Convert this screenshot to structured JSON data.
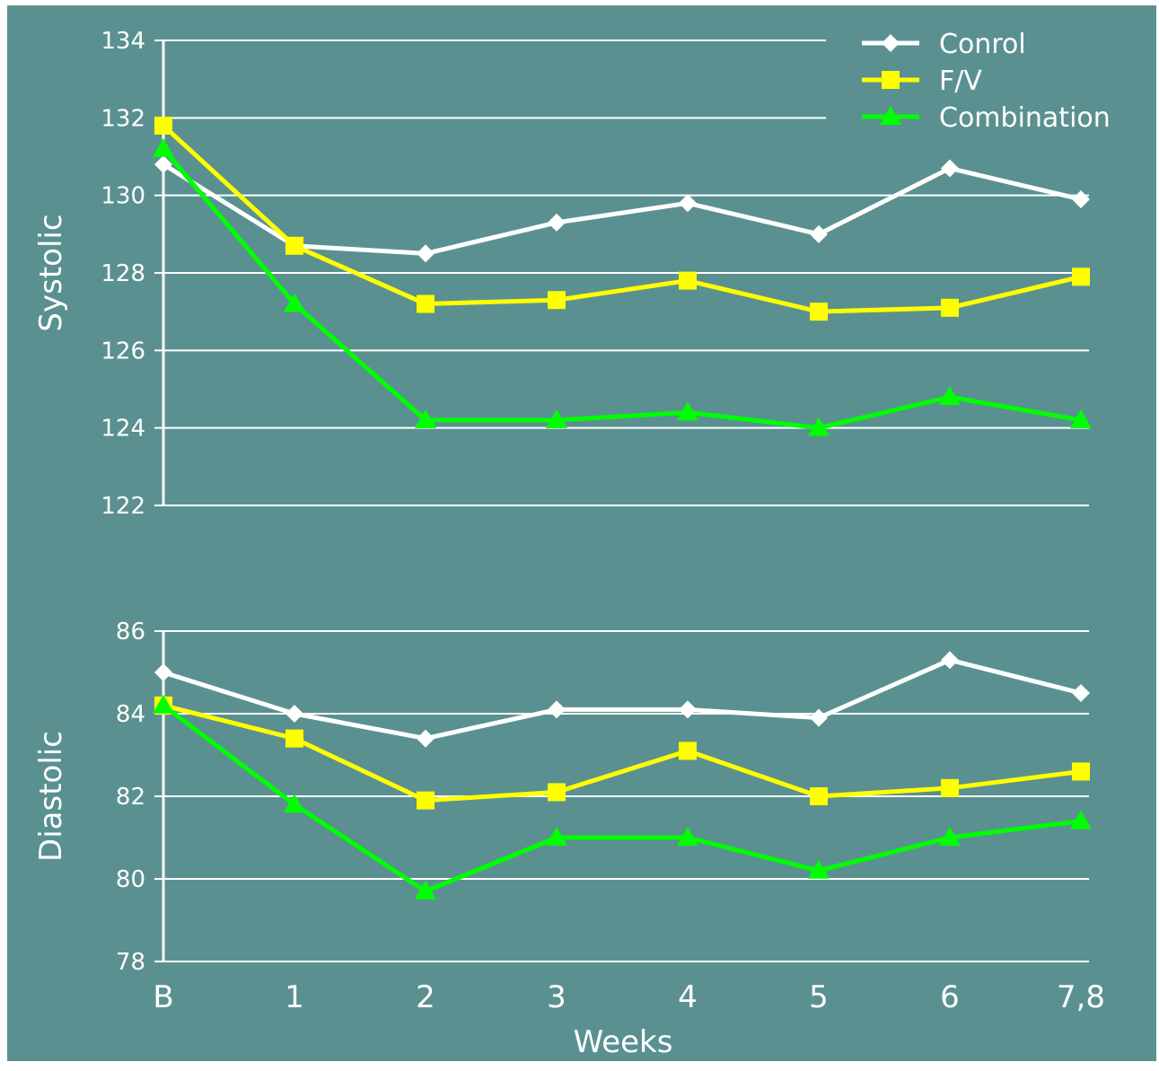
{
  "colors": {
    "background": "#5a9190",
    "grid": "#ffffff",
    "axis": "#ffffff",
    "text": "#ffffff"
  },
  "legend": {
    "placement": "top-right",
    "entries": [
      {
        "label": "Conrol",
        "color": "#ffffff",
        "marker": "diamond"
      },
      {
        "label": "F/V",
        "color": "#ffff00",
        "marker": "square"
      },
      {
        "label": "Combination",
        "color": "#00ff00",
        "marker": "triangle"
      }
    ]
  },
  "xlabel": "Weeks",
  "chart_data": [
    {
      "type": "line",
      "ylabel": "Systolic",
      "categories": [
        "B",
        "1",
        "2",
        "3",
        "4",
        "5",
        "6",
        "7,8"
      ],
      "ylim": [
        122,
        134
      ],
      "yticks": [
        122,
        124,
        126,
        128,
        130,
        132,
        134
      ],
      "grid": true,
      "series": [
        {
          "name": "Conrol",
          "color": "#ffffff",
          "marker": "diamond",
          "values": [
            130.8,
            128.7,
            128.5,
            129.3,
            129.8,
            129.0,
            130.7,
            129.9
          ]
        },
        {
          "name": "F/V",
          "color": "#ffff00",
          "marker": "square",
          "values": [
            131.8,
            128.7,
            127.2,
            127.3,
            127.8,
            127.0,
            127.1,
            127.9
          ]
        },
        {
          "name": "Combination",
          "color": "#00ff00",
          "marker": "triangle",
          "values": [
            131.2,
            127.2,
            124.2,
            124.2,
            124.4,
            124.0,
            124.8,
            124.2
          ]
        }
      ]
    },
    {
      "type": "line",
      "ylabel": "Diastolic",
      "categories": [
        "B",
        "1",
        "2",
        "3",
        "4",
        "5",
        "6",
        "7,8"
      ],
      "ylim": [
        78,
        86
      ],
      "yticks": [
        78,
        80,
        82,
        84,
        86
      ],
      "grid": true,
      "series": [
        {
          "name": "Conrol",
          "color": "#ffffff",
          "marker": "diamond",
          "values": [
            85.0,
            84.0,
            83.4,
            84.1,
            84.1,
            83.9,
            85.3,
            84.5
          ]
        },
        {
          "name": "F/V",
          "color": "#ffff00",
          "marker": "square",
          "values": [
            84.2,
            83.4,
            81.9,
            82.1,
            83.1,
            82.0,
            82.2,
            82.6
          ]
        },
        {
          "name": "Combination",
          "color": "#00ff00",
          "marker": "triangle",
          "values": [
            84.2,
            81.8,
            79.7,
            81.0,
            81.0,
            80.2,
            81.0,
            81.4
          ]
        }
      ]
    }
  ]
}
